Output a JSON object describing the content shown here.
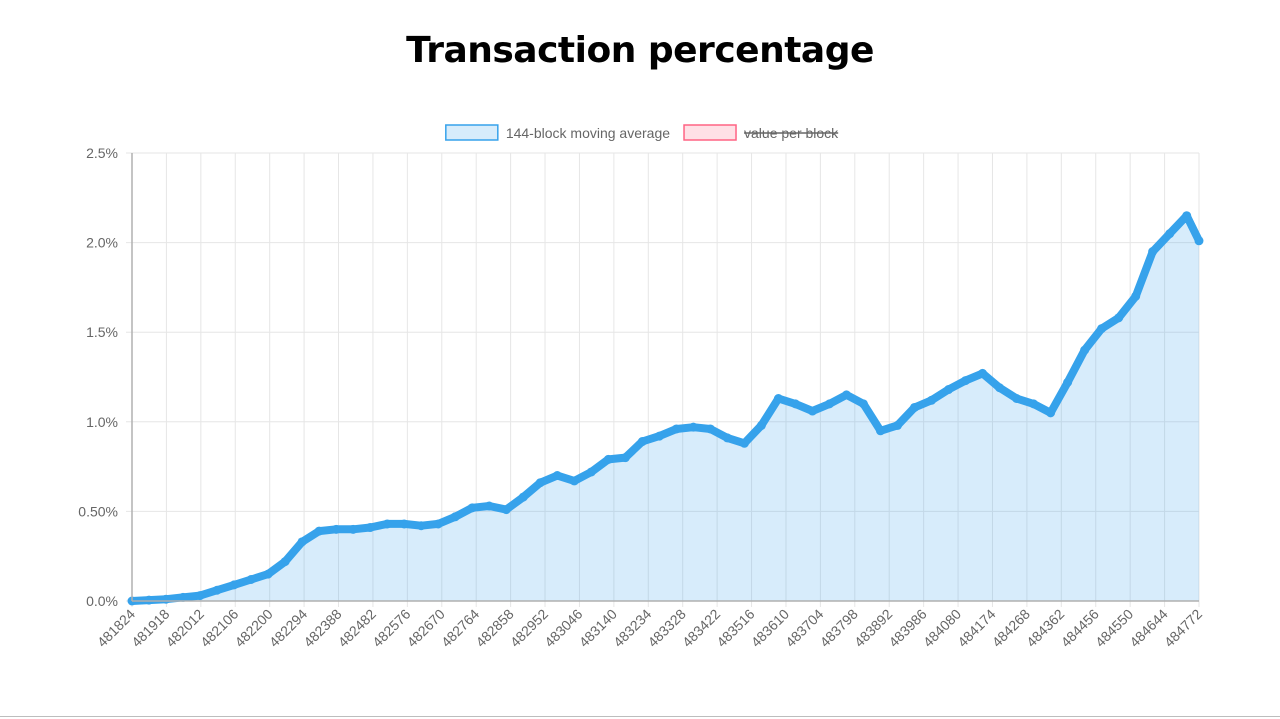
{
  "chart_data": {
    "type": "area",
    "title": "Transaction percentage",
    "xlabel": "",
    "ylabel": "",
    "legend_position": "top",
    "grid": true,
    "series": [
      {
        "name": "144-block moving average",
        "color": "#36a2eb",
        "fill": "rgba(54,162,235,0.2)",
        "hidden": false,
        "x": [
          481824,
          481871,
          481918,
          481965,
          482012,
          482059,
          482106,
          482153,
          482200,
          482247,
          482294,
          482341,
          482388,
          482435,
          482482,
          482529,
          482576,
          482623,
          482670,
          482717,
          482764,
          482811,
          482858,
          482905,
          482952,
          482999,
          483046,
          483093,
          483140,
          483187,
          483234,
          483281,
          483328,
          483375,
          483422,
          483469,
          483516,
          483563,
          483610,
          483657,
          483704,
          483751,
          483798,
          483845,
          483892,
          483939,
          483986,
          484033,
          484080,
          484127,
          484174,
          484221,
          484268,
          484315,
          484362,
          484409,
          484456,
          484503,
          484550,
          484597,
          484644,
          484691,
          484738,
          484772
        ],
        "values": [
          0.0,
          0.005,
          0.01,
          0.02,
          0.03,
          0.06,
          0.09,
          0.12,
          0.15,
          0.22,
          0.33,
          0.39,
          0.4,
          0.4,
          0.41,
          0.43,
          0.43,
          0.42,
          0.43,
          0.47,
          0.52,
          0.53,
          0.51,
          0.58,
          0.66,
          0.7,
          0.67,
          0.72,
          0.79,
          0.8,
          0.89,
          0.92,
          0.96,
          0.97,
          0.96,
          0.91,
          0.88,
          0.98,
          1.13,
          1.1,
          1.06,
          1.1,
          1.15,
          1.1,
          0.95,
          0.98,
          1.08,
          1.12,
          1.18,
          1.23,
          1.27,
          1.19,
          1.13,
          1.1,
          1.05,
          1.22,
          1.4,
          1.52,
          1.58,
          1.7,
          1.95,
          2.05,
          2.15,
          2.01
        ]
      },
      {
        "name": "value per block",
        "color": "#ff6384",
        "fill": "rgba(255,99,132,0.2)",
        "hidden": true,
        "x": [],
        "values": []
      }
    ],
    "x_tick_labels": [
      "481824",
      "481918",
      "482012",
      "482106",
      "482200",
      "482294",
      "482388",
      "482482",
      "482576",
      "482670",
      "482764",
      "482858",
      "482952",
      "483046",
      "483140",
      "483234",
      "483328",
      "483422",
      "483516",
      "483610",
      "483704",
      "483798",
      "483892",
      "483986",
      "484080",
      "484174",
      "484268",
      "484362",
      "484456",
      "484550",
      "484644",
      "484772"
    ],
    "y_ticks": [
      0,
      0.5,
      1.0,
      1.5,
      2.0,
      2.5
    ],
    "y_tick_labels": [
      "0.0%",
      "0.50%",
      "1.0%",
      "1.5%",
      "2.0%",
      "2.5%"
    ],
    "ylim": [
      0,
      2.5
    ],
    "xlim": [
      481824,
      484772
    ]
  }
}
